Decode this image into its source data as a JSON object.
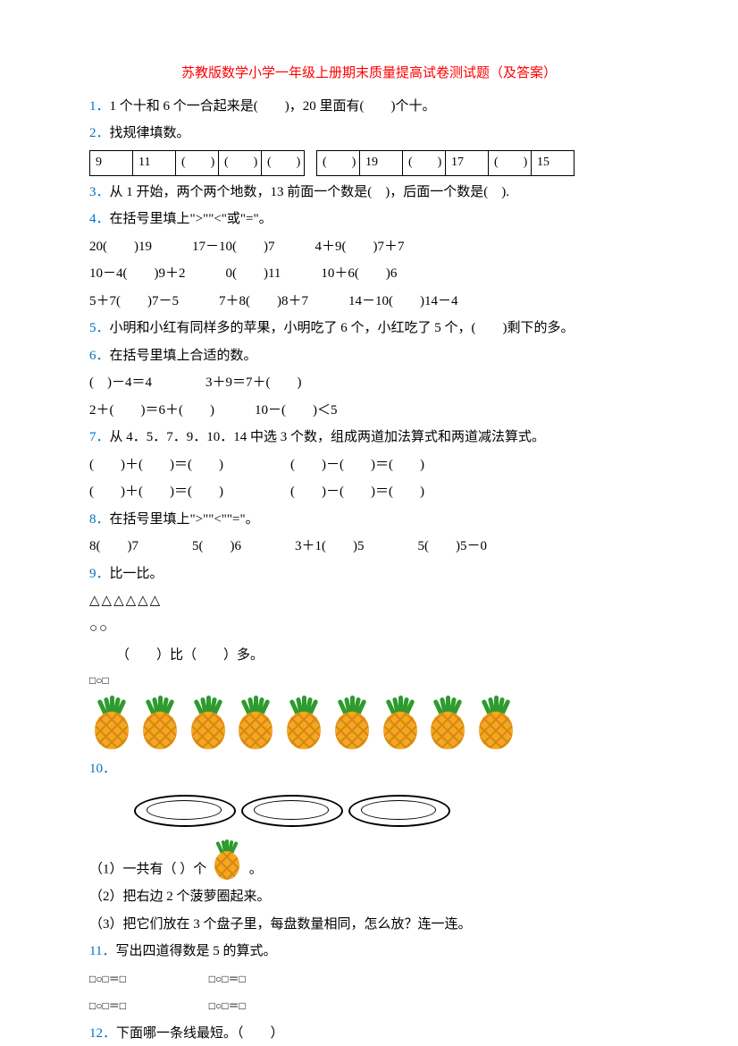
{
  "title": "苏教版数学小学一年级上册期末质量提高试卷测试题（及答案）",
  "q1": {
    "num": "1．",
    "text": "1 个十和 6 个一合起来是(　　)，20 里面有(　　)个十。"
  },
  "q2": {
    "num": "2．",
    "text": "找规律填数。",
    "row1": [
      "9",
      "11",
      "(　　)",
      "(　　)",
      "(　　)"
    ],
    "row2": [
      "(　　)",
      "19",
      "(　　)",
      "17",
      "(　　)",
      "15"
    ]
  },
  "q3": {
    "num": "3．",
    "text": "从 1 开始，两个两个地数，13 前面一个数是(　)，后面一个数是(　)."
  },
  "q4": {
    "num": "4．",
    "text": "在括号里填上\">\"\"<\"或\"=\"。",
    "l1": "20(　　)19　　　17－10(　　)7　　　4＋9(　　)7＋7",
    "l2": "10－4(　　)9＋2　　　0(　　)11　　　10＋6(　　)6",
    "l3": "5＋7(　　)7－5　　　7＋8(　　)8＋7　　　14－10(　　)14－4"
  },
  "q5": {
    "num": "5．",
    "text": "小明和小红有同样多的苹果，小明吃了 6 个，小红吃了 5 个，(　　)剩下的多。"
  },
  "q6": {
    "num": "6．",
    "text": "在括号里填上合适的数。",
    "l1": "(　)－4＝4　　　　3＋9＝7＋(　　)",
    "l2": "2＋(　　)＝6＋(　　)　　　10－(　　)＜5"
  },
  "q7": {
    "num": "7．",
    "text": "从 4．5．7．9．10．14 中选 3 个数，组成两道加法算式和两道减法算式。",
    "l1": "(　　)＋(　　)＝(　　)　　　　　(　　)－(　　)＝(　　)",
    "l2": "(　　)＋(　　)＝(　　)　　　　　(　　)－(　　)＝(　　)"
  },
  "q8": {
    "num": "8．",
    "text": "在括号里填上\">\"\"<\"\"=\"。",
    "l1": "8(　　)7　　　　5(　　)6　　　　3＋1(　　)5　　　　5(　　)5－0"
  },
  "q9": {
    "num": "9．",
    "text": "比一比。",
    "tri": "△△△△△△",
    "cir": "○○",
    "cmp": "（　　）比（　　）多。",
    "sym": "□○□"
  },
  "q10": {
    "num": "10．",
    "s1a": "（1）一共有（ ）个",
    "s1b": "。",
    "s2": "（2）把右边 2 个菠萝圈起来。",
    "s3": "（3）把它们放在 3 个盘子里，每盘数量相同，怎么放？连一连。"
  },
  "q11": {
    "num": "11．",
    "text": "写出四道得数是 5 的算式。",
    "eq": "□○□＝□"
  },
  "q12": {
    "num": "12．",
    "text": "下面哪一条线最短。（　　）"
  },
  "colors": {
    "title": "#ff0000",
    "qnum": "#0070c0",
    "text": "#000000",
    "pineapple_body": "#f5a623",
    "pineapple_pattern": "#d68910",
    "pineapple_leaf": "#2e9b2e"
  }
}
